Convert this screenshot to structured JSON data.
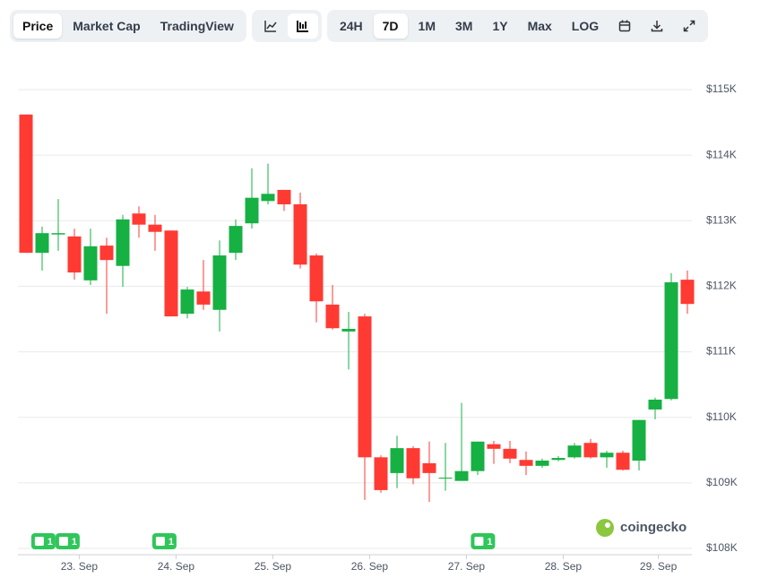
{
  "toolbar": {
    "views": [
      "Price",
      "Market Cap",
      "TradingView"
    ],
    "ranges": [
      "24H",
      "7D",
      "1M",
      "3M",
      "1Y",
      "Max",
      "LOG"
    ]
  },
  "watermark": "coingecko",
  "chart_data": {
    "type": "candlestick",
    "x": [
      0,
      1,
      2,
      3,
      4,
      5,
      6,
      7,
      8,
      9,
      10,
      11,
      12,
      13,
      14,
      15,
      16,
      17,
      18,
      19,
      20,
      21,
      22,
      23,
      24,
      25,
      26,
      27,
      28,
      29,
      30,
      31,
      32,
      33,
      34,
      35,
      36,
      37,
      38,
      39,
      40,
      41
    ],
    "open": [
      114620,
      112510,
      112790,
      112760,
      112090,
      112620,
      112310,
      113110,
      112940,
      112850,
      111580,
      111920,
      111640,
      112510,
      112960,
      113300,
      113470,
      113250,
      112470,
      111720,
      111310,
      111540,
      109390,
      109150,
      109530,
      109300,
      109070,
      109030,
      109180,
      109590,
      109520,
      109350,
      109260,
      109350,
      109390,
      109610,
      109390,
      109460,
      109340,
      110120,
      110280,
      112100
    ],
    "high": [
      114620,
      112910,
      113330,
      112880,
      112880,
      112740,
      113090,
      113220,
      113090,
      112850,
      111990,
      112400,
      112700,
      113020,
      113800,
      113870,
      113470,
      113430,
      112500,
      112020,
      111610,
      111580,
      109420,
      109720,
      109560,
      109630,
      109610,
      110220,
      109630,
      109640,
      109640,
      109480,
      109370,
      109410,
      109610,
      109670,
      109490,
      109490,
      109960,
      110300,
      112200,
      112240
    ],
    "low": [
      112510,
      112240,
      112540,
      112100,
      112020,
      111580,
      111990,
      112740,
      112540,
      111540,
      111510,
      111640,
      111310,
      112400,
      112880,
      113250,
      113150,
      112270,
      111450,
      111340,
      110730,
      108740,
      108850,
      108920,
      108980,
      108710,
      108880,
      109030,
      109120,
      109290,
      109300,
      109120,
      109230,
      109330,
      109370,
      109370,
      109230,
      109190,
      109190,
      109970,
      110260,
      111580
    ],
    "close": [
      112510,
      112810,
      112810,
      112210,
      112610,
      112400,
      113020,
      112940,
      112830,
      111540,
      111950,
      111720,
      112470,
      112920,
      113350,
      113410,
      113250,
      112330,
      111770,
      111360,
      111350,
      109390,
      108890,
      109530,
      109070,
      109150,
      109080,
      109180,
      109630,
      109520,
      109370,
      109260,
      109340,
      109380,
      109570,
      109390,
      109460,
      109200,
      109960,
      110270,
      112060,
      111730
    ],
    "up_color": "#16b043",
    "down_color": "#ff3a33",
    "xlim": [
      -0.5,
      41.5
    ],
    "xticks": [
      {
        "value": 3.3,
        "label": "23. Sep"
      },
      {
        "value": 9.3,
        "label": "24. Sep"
      },
      {
        "value": 15.3,
        "label": "25. Sep"
      },
      {
        "value": 21.3,
        "label": "26. Sep"
      },
      {
        "value": 27.3,
        "label": "27. Sep"
      },
      {
        "value": 33.3,
        "label": "28. Sep"
      },
      {
        "value": 39.2,
        "label": "29. Sep"
      }
    ],
    "ylim": [
      108000,
      115000
    ],
    "yticks": [
      {
        "value": 108000,
        "label": "$108K"
      },
      {
        "value": 109000,
        "label": "$109K"
      },
      {
        "value": 110000,
        "label": "$110K"
      },
      {
        "value": 111000,
        "label": "$111K"
      },
      {
        "value": 112000,
        "label": "$112K"
      },
      {
        "value": 113000,
        "label": "$113K"
      },
      {
        "value": 114000,
        "label": "$114K"
      },
      {
        "value": 115000,
        "label": "$115K"
      }
    ],
    "grid": true,
    "annotations": [
      {
        "x": 1.05,
        "label": "1"
      },
      {
        "x": 2.55,
        "label": "1"
      },
      {
        "x": 8.55,
        "label": "1"
      },
      {
        "x": 28.3,
        "label": "1"
      }
    ]
  }
}
